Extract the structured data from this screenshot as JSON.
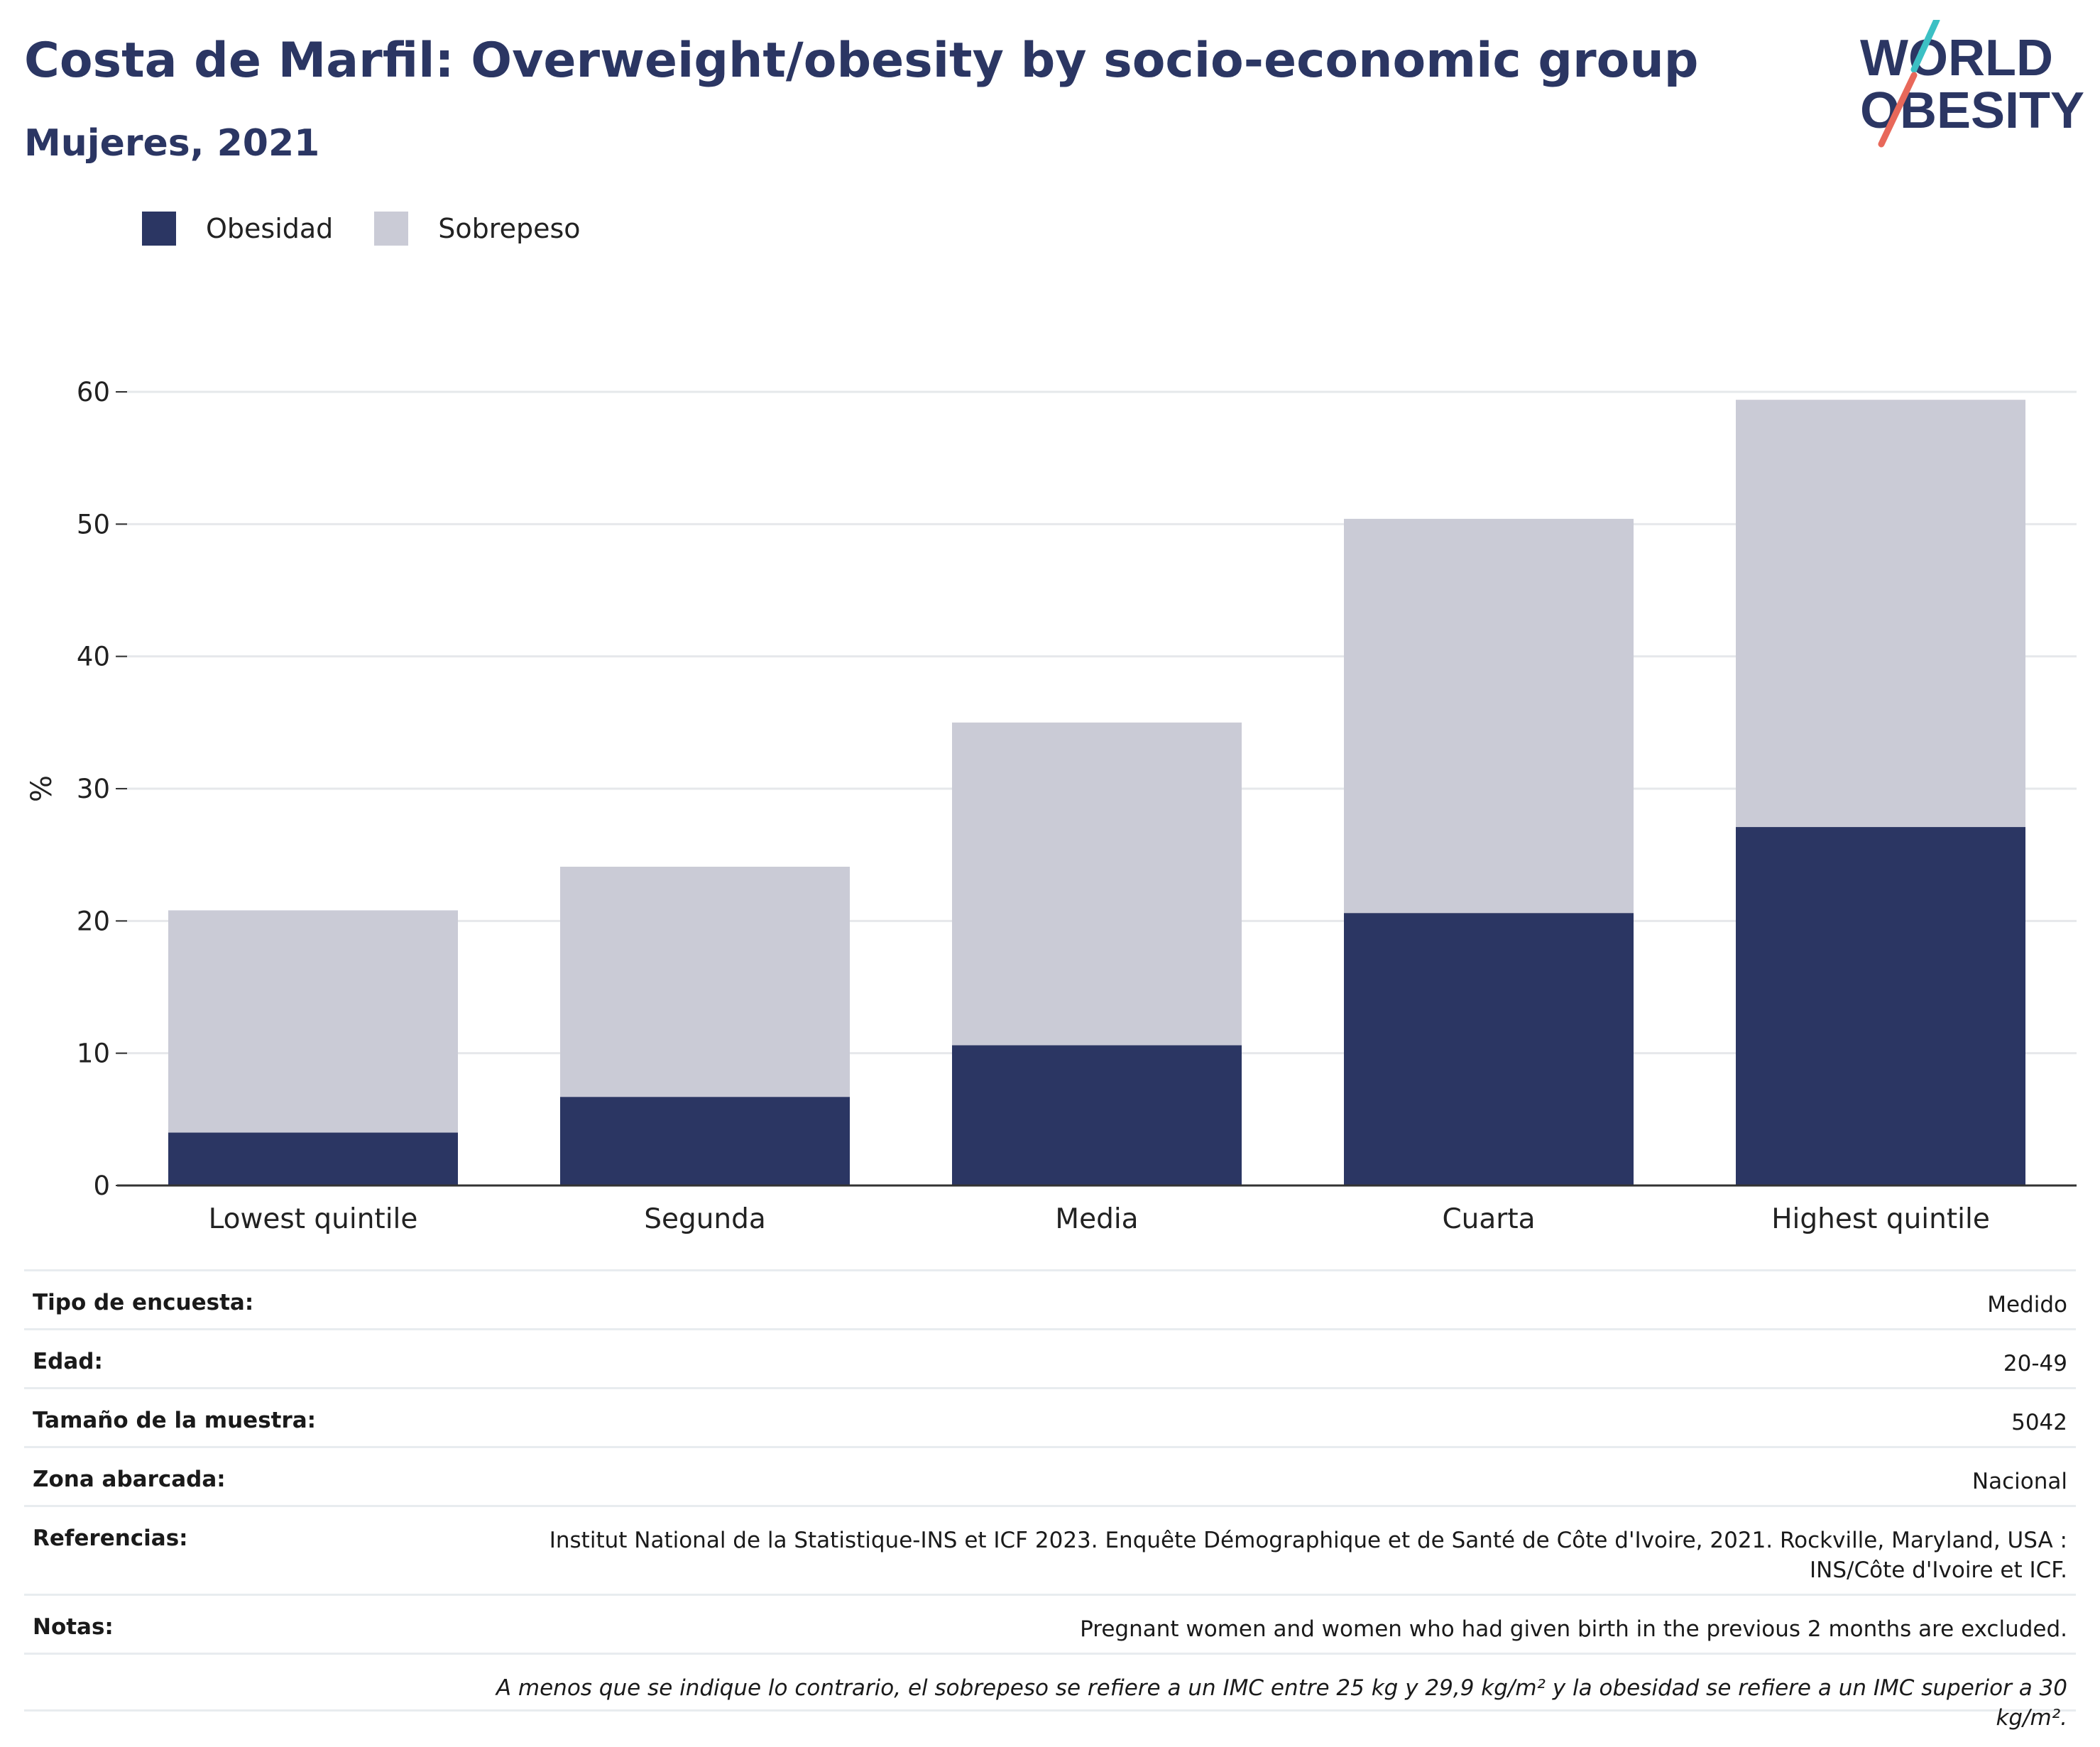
{
  "header": {
    "title": "Costa de Marfil: Overweight/obesity by socio-economic group",
    "subtitle": "Mujeres, 2021",
    "logo_line1": "WORLD",
    "logo_line2": "OBESITY"
  },
  "colors": {
    "obesidad": "#2b3663",
    "sobrepeso": "#cacbd6",
    "grid": "#e6e8eb",
    "logo_teal": "#3cc0c4",
    "logo_red": "#e8685a"
  },
  "chart_data": {
    "type": "bar",
    "stacked": true,
    "categories": [
      "Lowest quintile",
      "Segunda",
      "Media",
      "Cuarta",
      "Highest quintile"
    ],
    "series": [
      {
        "name": "Obesidad",
        "values": [
          4.0,
          6.7,
          10.6,
          20.6,
          27.1
        ]
      },
      {
        "name": "Sobrepeso",
        "values": [
          16.8,
          17.4,
          24.4,
          29.8,
          32.3
        ]
      }
    ],
    "ylabel": "%",
    "ylim": [
      0,
      60
    ],
    "yticks": [
      0,
      10,
      20,
      30,
      40,
      50,
      60
    ],
    "grid": true,
    "legend_position": "top-left"
  },
  "meta": {
    "survey_type": {
      "label": "Tipo de encuesta:",
      "value": "Medido"
    },
    "age": {
      "label": "Edad:",
      "value": "20-49"
    },
    "sample_size": {
      "label": "Tamaño de la muestra:",
      "value": "5042"
    },
    "area": {
      "label": "Zona abarcada:",
      "value": "Nacional"
    },
    "references": {
      "label": "Referencias:",
      "value": "Institut National de la Statistique-INS et ICF 2023. Enquête Démographique et de Santé de Côte d'Ivoire, 2021. Rockville, Maryland, USA : INS/Côte d'Ivoire et ICF."
    },
    "notes": {
      "label": "Notas:",
      "value": "Pregnant women and women who had given birth in the previous 2 months are excluded."
    },
    "footnote": "A menos que se indique lo contrario, el sobrepeso se refiere a un IMC entre 25 kg y 29,9 kg/m² y la obesidad se refiere a un IMC superior a 30 kg/m²."
  }
}
